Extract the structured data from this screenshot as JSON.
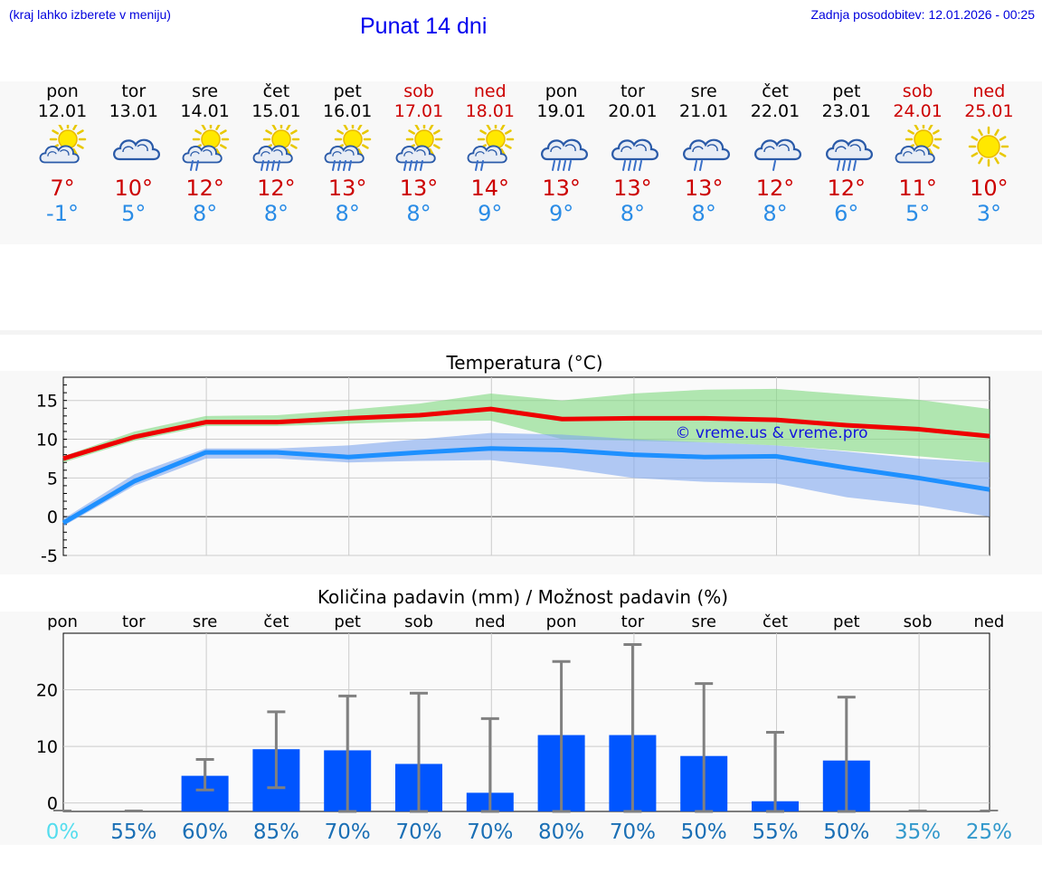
{
  "header": {
    "hint": "(kraj lahko izberete v meniju)",
    "title": "Punat 14 dni",
    "updated": "Zadnja posodobitev: 12.01.2026 - 00:25"
  },
  "days": [
    {
      "name": "pon",
      "date": "12.01",
      "icon": "sun-cloud-icon",
      "max": "7°",
      "min": "-1°",
      "weekend": false
    },
    {
      "name": "tor",
      "date": "13.01",
      "icon": "cloud-icon",
      "max": "10°",
      "min": "5°",
      "weekend": false
    },
    {
      "name": "sre",
      "date": "14.01",
      "icon": "sun-cloud-rain-icon",
      "max": "12°",
      "min": "8°",
      "weekend": false
    },
    {
      "name": "čet",
      "date": "15.01",
      "icon": "sun-cloud-heavy-rain-icon",
      "max": "12°",
      "min": "8°",
      "weekend": false
    },
    {
      "name": "pet",
      "date": "16.01",
      "icon": "sun-cloud-heavy-rain-icon",
      "max": "13°",
      "min": "8°",
      "weekend": false
    },
    {
      "name": "sob",
      "date": "17.01",
      "icon": "sun-cloud-heavy-rain-icon",
      "max": "13°",
      "min": "8°",
      "weekend": true
    },
    {
      "name": "ned",
      "date": "18.01",
      "icon": "sun-cloud-rain-icon",
      "max": "14°",
      "min": "9°",
      "weekend": true
    },
    {
      "name": "pon",
      "date": "19.01",
      "icon": "cloud-heavy-rain-icon",
      "max": "13°",
      "min": "9°",
      "weekend": false
    },
    {
      "name": "tor",
      "date": "20.01",
      "icon": "cloud-heavy-rain-icon",
      "max": "13°",
      "min": "8°",
      "weekend": false
    },
    {
      "name": "sre",
      "date": "21.01",
      "icon": "cloud-rain-icon",
      "max": "13°",
      "min": "8°",
      "weekend": false
    },
    {
      "name": "čet",
      "date": "22.01",
      "icon": "cloud-light-rain-icon",
      "max": "12°",
      "min": "8°",
      "weekend": false
    },
    {
      "name": "pet",
      "date": "23.01",
      "icon": "cloud-heavy-rain-icon",
      "max": "12°",
      "min": "6°",
      "weekend": false
    },
    {
      "name": "sob",
      "date": "24.01",
      "icon": "sun-cloud-icon",
      "max": "11°",
      "min": "5°",
      "weekend": true
    },
    {
      "name": "ned",
      "date": "25.01",
      "icon": "sun-icon",
      "max": "10°",
      "min": "3°",
      "weekend": true
    }
  ],
  "colors": {
    "max_line": "#ee0000",
    "min_line": "#1e90ff",
    "max_band": "#7fd97f",
    "min_band": "#7fa6ee",
    "bar": "#0055ff",
    "whisker": "#808080",
    "watermark": "#1111dd",
    "weekend": "#cc0000",
    "tmin": "#2a8ce6"
  },
  "chart_data": [
    {
      "type": "line",
      "title": "Temperatura (°C)",
      "x": [
        0,
        1,
        2,
        3,
        4,
        5,
        6,
        7,
        8,
        9,
        10,
        11,
        12,
        13
      ],
      "ylim": [
        -5,
        18
      ],
      "yticks": [
        -5,
        0,
        5,
        10,
        15
      ],
      "watermark": "© vreme.us & vreme.pro",
      "series": [
        {
          "name": "max",
          "values": [
            7.5,
            10.3,
            12.2,
            12.2,
            12.7,
            13.1,
            13.9,
            12.6,
            12.7,
            12.7,
            12.5,
            11.8,
            11.3,
            10.4
          ],
          "band_low": [
            7,
            9.8,
            11.7,
            11.7,
            12,
            12.3,
            12.4,
            10,
            9.8,
            9.6,
            9.2,
            8.5,
            7.8,
            7
          ],
          "band_high": [
            7.8,
            11,
            13,
            13.1,
            13.8,
            14.6,
            15.9,
            15,
            15.9,
            16.4,
            16.5,
            15.8,
            15.1,
            13.9
          ]
        },
        {
          "name": "min",
          "values": [
            -0.8,
            4.6,
            8.3,
            8.3,
            7.7,
            8.3,
            8.8,
            8.6,
            8,
            7.7,
            7.8,
            6.3,
            5,
            3.5
          ],
          "band_low": [
            -1.2,
            4,
            7.5,
            7.5,
            7,
            7.2,
            7.3,
            6.3,
            5,
            4.5,
            4.3,
            2.5,
            1.5,
            0
          ],
          "band_high": [
            -0.3,
            5.5,
            8.8,
            8.8,
            9.2,
            10,
            10.8,
            10.6,
            10,
            9.6,
            9.2,
            8.4,
            7.5,
            7
          ]
        }
      ]
    },
    {
      "type": "bar",
      "title": "Količina padavin (mm) / Možnost padavin (%)",
      "categories": [
        "pon",
        "tor",
        "sre",
        "čet",
        "pet",
        "sob",
        "ned",
        "pon",
        "tor",
        "sre",
        "čet",
        "pet",
        "sob",
        "ned"
      ],
      "ylim": [
        -1.5,
        30
      ],
      "yticks": [
        0,
        10,
        20
      ],
      "values": [
        0,
        0,
        4.8,
        9.5,
        9.3,
        6.9,
        1.8,
        12,
        12,
        8.3,
        0.3,
        7.5,
        0,
        0
      ],
      "err_low": [
        0,
        0,
        2.3,
        2.7,
        0,
        0,
        0,
        0,
        0,
        0,
        0,
        0,
        0,
        0
      ],
      "err_high": [
        0,
        0,
        7.7,
        16.1,
        18.9,
        19.4,
        14.9,
        25,
        28,
        21.1,
        12.5,
        18.7,
        0,
        0
      ],
      "probability": [
        "0%",
        "55%",
        "60%",
        "85%",
        "70%",
        "70%",
        "70%",
        "80%",
        "70%",
        "50%",
        "55%",
        "50%",
        "35%",
        "25%"
      ],
      "probability_colors": [
        "#55ddee",
        "#1a6fb5",
        "#1a6fb5",
        "#1a6fb5",
        "#1a6fb5",
        "#1a6fb5",
        "#1a6fb5",
        "#1a6fb5",
        "#1a6fb5",
        "#1a6fb5",
        "#1a6fb5",
        "#1a6fb5",
        "#3399cc",
        "#3399cc"
      ]
    }
  ]
}
